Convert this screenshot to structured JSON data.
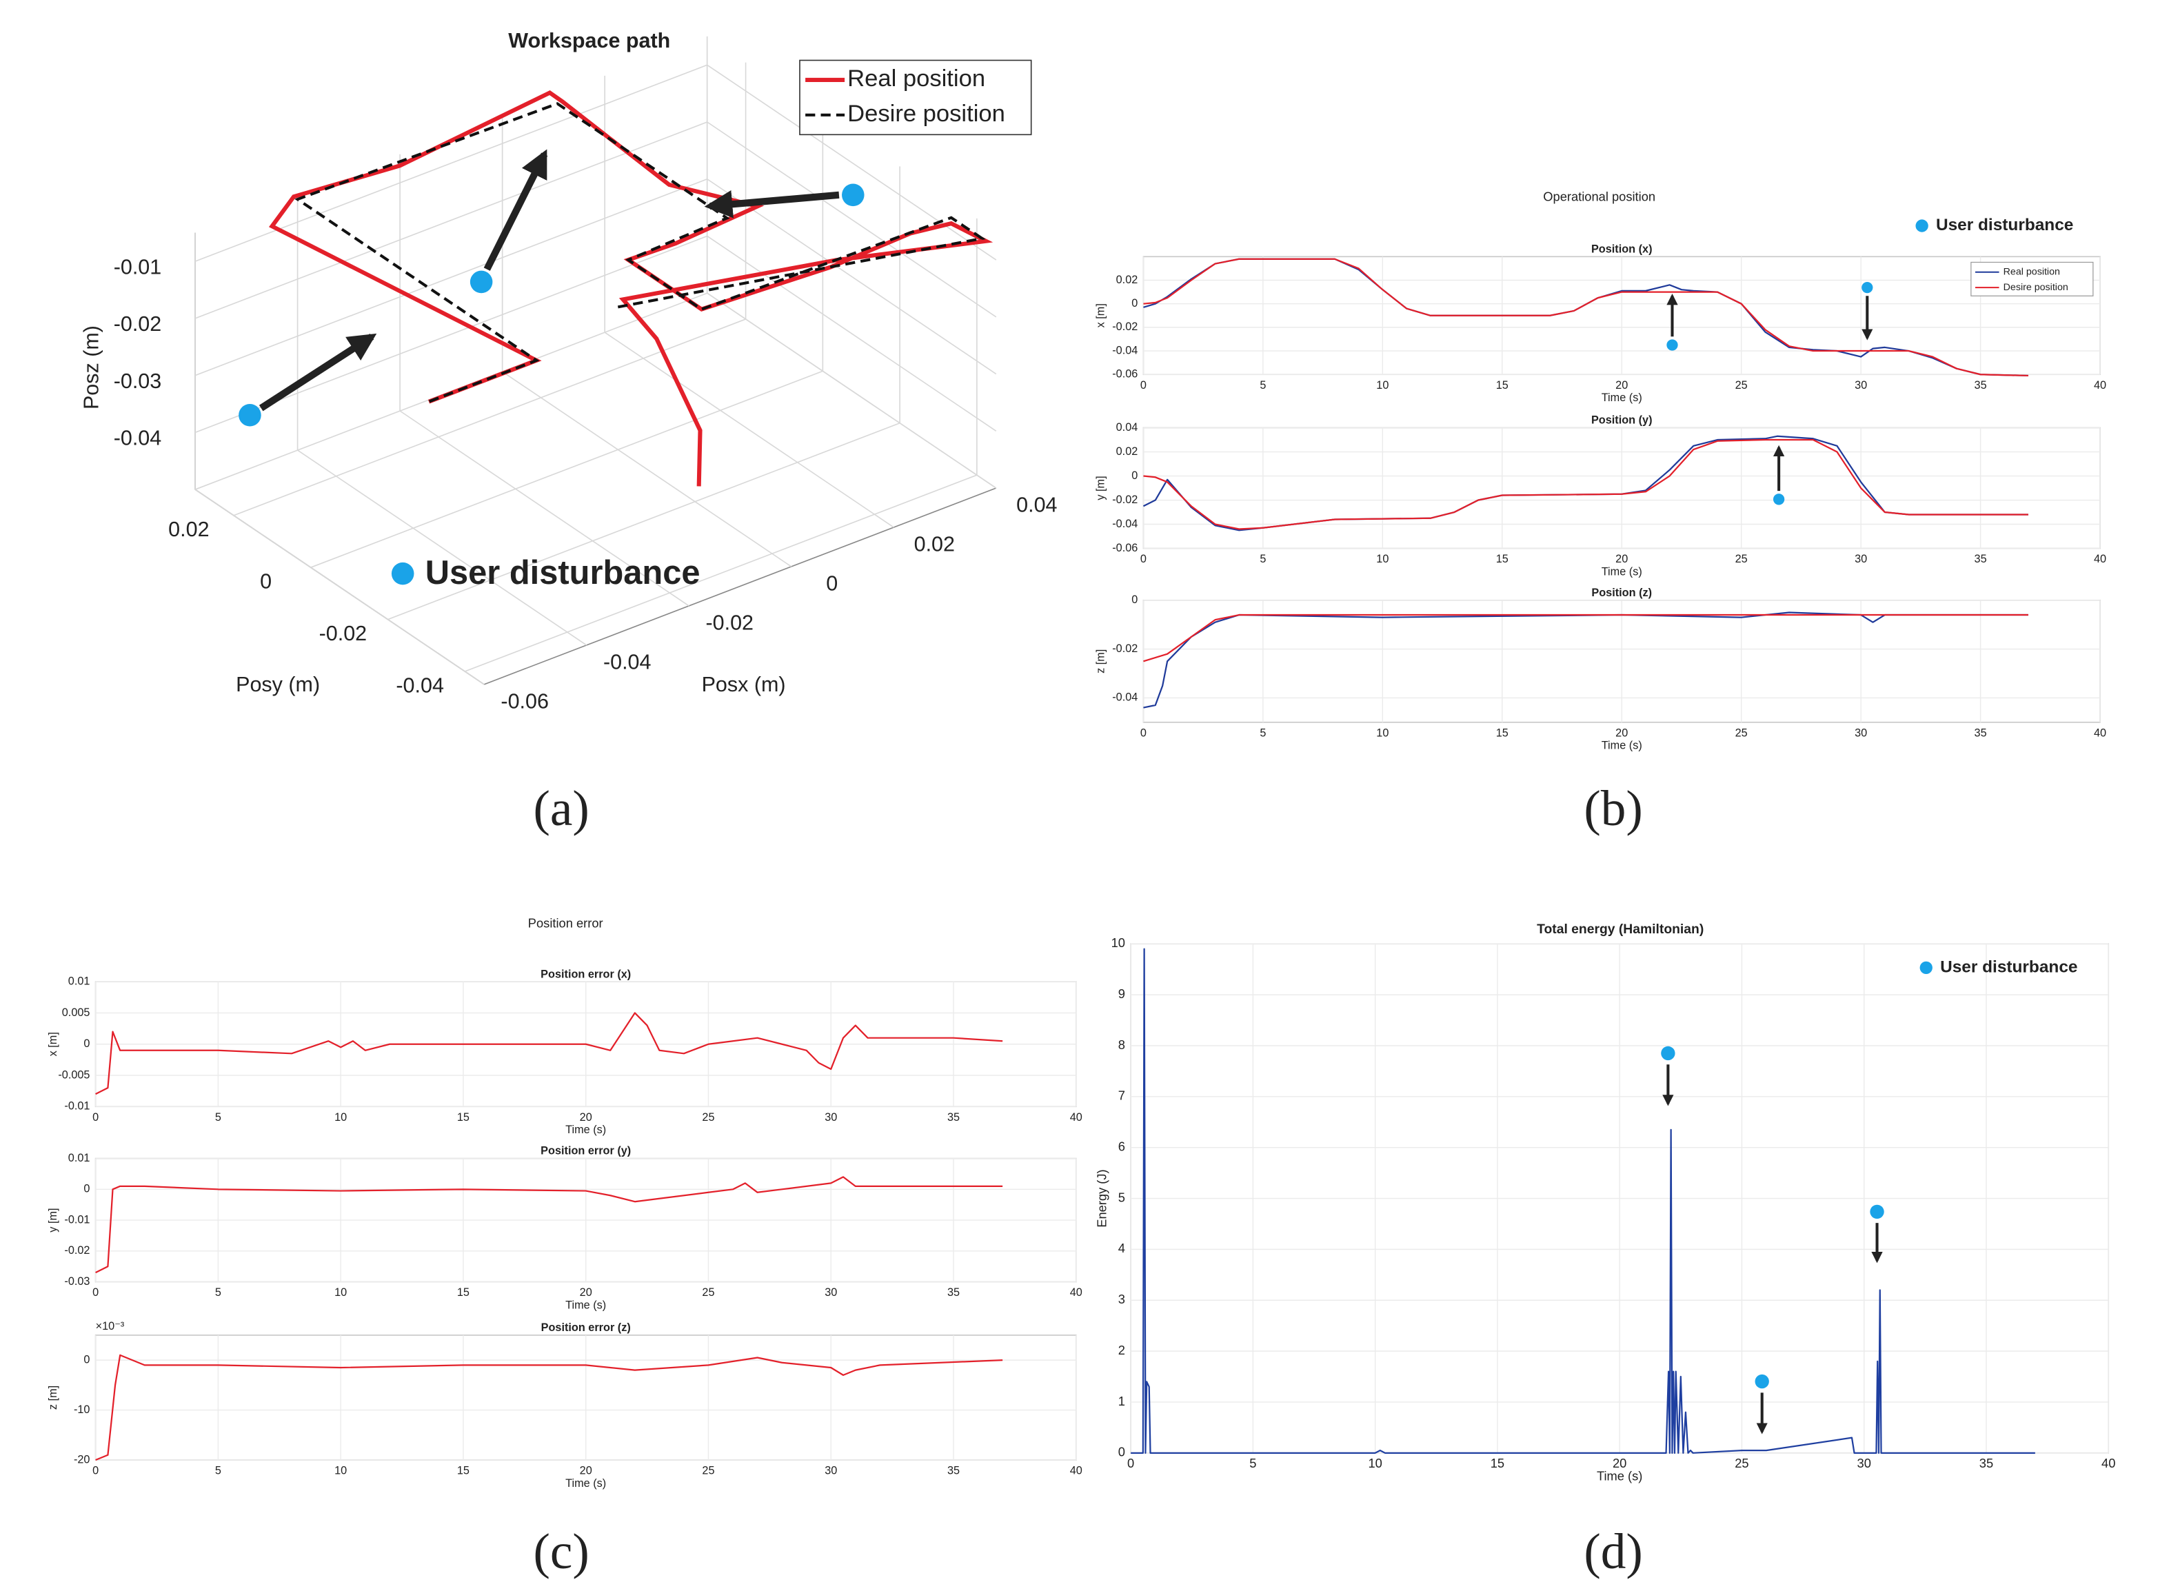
{
  "chart_data": [
    {
      "type": "line3d",
      "label": "(a)",
      "title": "Workspace path",
      "annotation": "User disturbance",
      "xlabel": "Posx (m)",
      "ylabel": "Posy (m)",
      "zlabel": "Posz (m)",
      "xlim": [
        -0.06,
        0.04
      ],
      "ylim": [
        -0.045,
        0.03
      ],
      "zlim": [
        -0.05,
        -0.005
      ],
      "xticks": [
        -0.06,
        -0.04,
        -0.02,
        0,
        0.02,
        0.04
      ],
      "yticks": [
        -0.04,
        -0.02,
        0,
        0.02
      ],
      "zticks": [
        -0.04,
        -0.03,
        -0.02,
        -0.01
      ],
      "grid": true,
      "legend": "upper right",
      "series": [
        {
          "name": "Real position",
          "color": "#e3202a",
          "line_style": "solid",
          "x": [
            -0.003,
            -0.002,
            0,
            0.001,
            0.02,
            0.038,
            0.038,
            0.03,
            0.016,
            -0.01,
            -0.01,
            0,
            0.016,
            0.01,
            0.011,
            0.01,
            -0.02,
            -0.04,
            -0.045,
            -0.04,
            -0.05,
            -0.061
          ],
          "y": [
            -0.025,
            -0.024,
            -0.01,
            0,
            -0.03,
            -0.045,
            -0.036,
            -0.036,
            -0.034,
            -0.035,
            -0.016,
            -0.015,
            -0.015,
            0,
            0.029,
            0.031,
            0.03,
            0.031,
            0.03,
            -0.032,
            -0.032,
            -0.032
          ],
          "z": [
            -0.044,
            -0.035,
            -0.026,
            -0.024,
            -0.01,
            -0.006,
            -0.007,
            -0.006,
            -0.008,
            -0.006,
            -0.006,
            -0.007,
            -0.006,
            -0.007,
            -0.006,
            -0.005,
            -0.007,
            -0.006,
            -0.009,
            -0.006,
            -0.006,
            -0.006
          ]
        },
        {
          "name": "Desire position",
          "color": "#111111",
          "line_style": "dashed",
          "x": [
            0,
            0.038,
            0.038,
            -0.01,
            -0.01,
            0.01,
            0.01,
            -0.04,
            -0.04,
            -0.061
          ],
          "y": [
            0,
            -0.044,
            -0.036,
            -0.035,
            -0.016,
            -0.015,
            0.029,
            0.03,
            -0.032,
            -0.032
          ],
          "z": [
            -0.025,
            -0.006,
            -0.006,
            -0.006,
            -0.006,
            -0.006,
            -0.006,
            -0.006,
            -0.006,
            -0.006
          ]
        }
      ]
    },
    {
      "type": "line",
      "label": "(b)",
      "title": "Operational position",
      "annotation": "User disturbance",
      "subplots": [
        {
          "title": "Position (x)",
          "ylabel": "x [m]",
          "xlabel": "Time (s)",
          "xlim": [
            0,
            40
          ],
          "xticks": [
            0,
            5,
            10,
            15,
            20,
            25,
            30,
            35,
            40
          ],
          "ylim": [
            -0.06,
            0.04
          ],
          "yticks": [
            -0.06,
            -0.04,
            -0.02,
            0,
            0.02
          ],
          "grid": true,
          "legend": "upper right",
          "series": [
            {
              "name": "Real position",
              "color": "#1f3a9a",
              "x": [
                0,
                0.5,
                1,
                2,
                3,
                4,
                8,
                9,
                10,
                11,
                12,
                17,
                18,
                19,
                20,
                21,
                22,
                22.5,
                23,
                24,
                25,
                26,
                27,
                28,
                29,
                30,
                30.5,
                31,
                32,
                33,
                34,
                35,
                37
              ],
              "values": [
                -0.003,
                0,
                0.006,
                0.021,
                0.034,
                0.038,
                0.038,
                0.029,
                0.012,
                -0.004,
                -0.01,
                -0.01,
                -0.006,
                0.005,
                0.011,
                0.011,
                0.016,
                0.012,
                0.011,
                0.01,
                0,
                -0.024,
                -0.037,
                -0.039,
                -0.04,
                -0.045,
                -0.038,
                -0.037,
                -0.04,
                -0.046,
                -0.055,
                -0.06,
                -0.061
              ]
            },
            {
              "name": "Desire position",
              "color": "#e3202a",
              "x": [
                0,
                0.5,
                1,
                2,
                3,
                4,
                8,
                9,
                10,
                11,
                12,
                17,
                18,
                19,
                20,
                21,
                22,
                22.5,
                23,
                24,
                25,
                26,
                27,
                28,
                29,
                30,
                30.5,
                31,
                32,
                33,
                34,
                35,
                37
              ],
              "values": [
                0,
                0.001,
                0.005,
                0.02,
                0.034,
                0.038,
                0.038,
                0.03,
                0.012,
                -0.004,
                -0.01,
                -0.01,
                -0.006,
                0.005,
                0.01,
                0.01,
                0.01,
                0.01,
                0.01,
                0.01,
                0,
                -0.022,
                -0.036,
                -0.04,
                -0.04,
                -0.04,
                -0.04,
                -0.04,
                -0.04,
                -0.045,
                -0.055,
                -0.06,
                -0.061
              ]
            }
          ]
        },
        {
          "title": "Position (y)",
          "ylabel": "y [m]",
          "xlabel": "Time (s)",
          "xlim": [
            0,
            40
          ],
          "xticks": [
            0,
            5,
            10,
            15,
            20,
            25,
            30,
            35,
            40
          ],
          "ylim": [
            -0.06,
            0.04
          ],
          "yticks": [
            -0.06,
            -0.04,
            -0.02,
            0,
            0.02,
            0.04
          ],
          "grid": true,
          "series": [
            {
              "color": "#1f3a9a",
              "x": [
                0,
                0.5,
                1,
                2,
                3,
                4,
                5,
                8,
                12,
                13,
                14,
                15,
                20,
                21,
                22,
                23,
                24,
                26,
                26.5,
                28,
                29,
                30,
                31,
                32,
                37
              ],
              "values": [
                -0.025,
                -0.02,
                -0.003,
                -0.026,
                -0.041,
                -0.045,
                -0.043,
                -0.036,
                -0.035,
                -0.03,
                -0.02,
                -0.016,
                -0.015,
                -0.012,
                0.005,
                0.025,
                0.03,
                0.031,
                0.033,
                0.031,
                0.025,
                -0.005,
                -0.03,
                -0.032,
                -0.032
              ]
            },
            {
              "color": "#e3202a",
              "x": [
                0,
                0.5,
                1,
                2,
                3,
                4,
                5,
                8,
                12,
                13,
                14,
                15,
                20,
                21,
                22,
                23,
                24,
                26,
                26.5,
                28,
                29,
                30,
                31,
                32,
                37
              ],
              "values": [
                0,
                -0.001,
                -0.005,
                -0.025,
                -0.04,
                -0.044,
                -0.043,
                -0.036,
                -0.035,
                -0.03,
                -0.02,
                -0.016,
                -0.015,
                -0.013,
                0,
                0.022,
                0.029,
                0.03,
                0.03,
                0.03,
                0.02,
                -0.01,
                -0.03,
                -0.032,
                -0.032
              ]
            }
          ]
        },
        {
          "title": "Position (z)",
          "ylabel": "z [m]",
          "xlabel": "Time (s)",
          "xlim": [
            0,
            40
          ],
          "xticks": [
            0,
            5,
            10,
            15,
            20,
            25,
            30,
            35,
            40
          ],
          "ylim": [
            -0.05,
            0
          ],
          "yticks": [
            -0.04,
            -0.02,
            0
          ],
          "grid": true,
          "series": [
            {
              "color": "#1f3a9a",
              "x": [
                0,
                0.5,
                0.8,
                1,
                2,
                3,
                4,
                10,
                20,
                25,
                27,
                30,
                30.5,
                31,
                37
              ],
              "values": [
                -0.044,
                -0.043,
                -0.035,
                -0.025,
                -0.015,
                -0.009,
                -0.006,
                -0.007,
                -0.006,
                -0.007,
                -0.005,
                -0.006,
                -0.009,
                -0.006,
                -0.006
              ]
            },
            {
              "color": "#e3202a",
              "x": [
                0,
                1,
                2,
                3,
                4,
                37
              ],
              "values": [
                -0.025,
                -0.022,
                -0.015,
                -0.008,
                -0.006,
                -0.006
              ]
            }
          ]
        }
      ]
    },
    {
      "type": "line",
      "label": "(c)",
      "title": "Position error",
      "subplots": [
        {
          "title": "Position error (x)",
          "ylabel": "x [m]",
          "xlabel": "Time (s)",
          "xlim": [
            0,
            40
          ],
          "xticks": [
            0,
            5,
            10,
            15,
            20,
            25,
            30,
            35,
            40
          ],
          "ylim": [
            -0.01,
            0.01
          ],
          "yticks": [
            -0.01,
            -0.005,
            0,
            0.005,
            0.01
          ],
          "grid": true,
          "series": [
            {
              "color": "#e3202a",
              "x": [
                0,
                0.5,
                0.7,
                1,
                1.5,
                2,
                5,
                8,
                9.5,
                10,
                10.5,
                11,
                12,
                20,
                21,
                21.5,
                22,
                22.5,
                23,
                24,
                25,
                26,
                27,
                28,
                29,
                29.5,
                30,
                30.5,
                31,
                31.5,
                32,
                35,
                37
              ],
              "values": [
                -0.008,
                -0.007,
                0.002,
                -0.001,
                -0.001,
                -0.001,
                -0.001,
                -0.0015,
                0.0005,
                -0.0005,
                0.0005,
                -0.001,
                0,
                0,
                -0.001,
                0.002,
                0.005,
                0.003,
                -0.001,
                -0.0015,
                0,
                0.0005,
                0.001,
                0,
                -0.001,
                -0.003,
                -0.004,
                0.001,
                0.003,
                0.001,
                0.001,
                0.001,
                0.0005
              ]
            }
          ]
        },
        {
          "title": "Position error (y)",
          "ylabel": "y [m]",
          "xlabel": "Time (s)",
          "xlim": [
            0,
            40
          ],
          "xticks": [
            0,
            5,
            10,
            15,
            20,
            25,
            30,
            35,
            40
          ],
          "ylim": [
            -0.03,
            0.01
          ],
          "yticks": [
            -0.03,
            -0.02,
            -0.01,
            0,
            0.01
          ],
          "grid": true,
          "series": [
            {
              "color": "#e3202a",
              "x": [
                0,
                0.5,
                0.7,
                1,
                2,
                5,
                10,
                15,
                20,
                21,
                22,
                23,
                25,
                26,
                26.5,
                27,
                28,
                30,
                30.5,
                31,
                32,
                37
              ],
              "values": [
                -0.027,
                -0.025,
                0,
                0.001,
                0.001,
                0,
                -0.0005,
                0,
                -0.0005,
                -0.002,
                -0.004,
                -0.003,
                -0.001,
                0,
                0.002,
                -0.001,
                0,
                0.002,
                0.004,
                0.001,
                0.001,
                0.001
              ]
            }
          ]
        },
        {
          "title": "Position error (z)",
          "ylabel": "z [m]",
          "xlabel": "Time (s)",
          "exponent_label": "×10⁻³",
          "xlim": [
            0,
            40
          ],
          "xticks": [
            0,
            5,
            10,
            15,
            20,
            25,
            30,
            35,
            40
          ],
          "ylim": [
            -20,
            5
          ],
          "yticks": [
            -20,
            -10,
            0
          ],
          "grid": true,
          "series": [
            {
              "color": "#e3202a",
              "x": [
                0,
                0.5,
                0.8,
                1,
                1.5,
                2,
                5,
                10,
                15,
                20,
                22,
                25,
                27,
                28,
                30,
                30.5,
                31,
                32,
                37
              ],
              "values": [
                -20,
                -19,
                -5,
                1,
                0,
                -1,
                -1,
                -1.5,
                -1,
                -1,
                -2,
                -1,
                0.5,
                -0.5,
                -1.5,
                -3,
                -2,
                -1,
                0
              ]
            }
          ]
        }
      ]
    },
    {
      "type": "line",
      "label": "(d)",
      "title": "Total energy (Hamiltonian)",
      "annotation": "User disturbance",
      "subplots": [
        {
          "ylabel": "Energy (J)",
          "xlabel": "Time (s)",
          "xlim": [
            0,
            40
          ],
          "xticks": [
            0,
            5,
            10,
            15,
            20,
            25,
            30,
            35,
            40
          ],
          "ylim": [
            0,
            10
          ],
          "yticks": [
            0,
            1,
            2,
            3,
            4,
            5,
            6,
            7,
            8,
            9,
            10
          ],
          "grid": true,
          "series": [
            {
              "color": "#1f3fa0",
              "x": [
                0,
                0.5,
                0.55,
                0.6,
                0.65,
                0.75,
                0.8,
                0.85,
                0.9,
                1,
                10,
                10.2,
                10.4,
                21.9,
                22,
                22.05,
                22.1,
                22.15,
                22.2,
                22.25,
                22.3,
                22.4,
                22.5,
                22.6,
                22.7,
                22.8,
                22.9,
                23,
                25,
                26,
                29.5,
                29.6,
                29.7,
                30.5,
                30.55,
                30.6,
                30.65,
                30.7,
                30.8,
                37
              ],
              "values": [
                0,
                0,
                9.9,
                0,
                1.4,
                1.3,
                0,
                0,
                0,
                0,
                0,
                0.05,
                0,
                0,
                1.6,
                0,
                6.35,
                0,
                1.6,
                0,
                1.6,
                0,
                1.5,
                0,
                0.8,
                0,
                0.05,
                0,
                0.05,
                0.05,
                0.3,
                0,
                0,
                0,
                1.8,
                0,
                3.2,
                0,
                0,
                0
              ]
            }
          ]
        }
      ]
    }
  ]
}
